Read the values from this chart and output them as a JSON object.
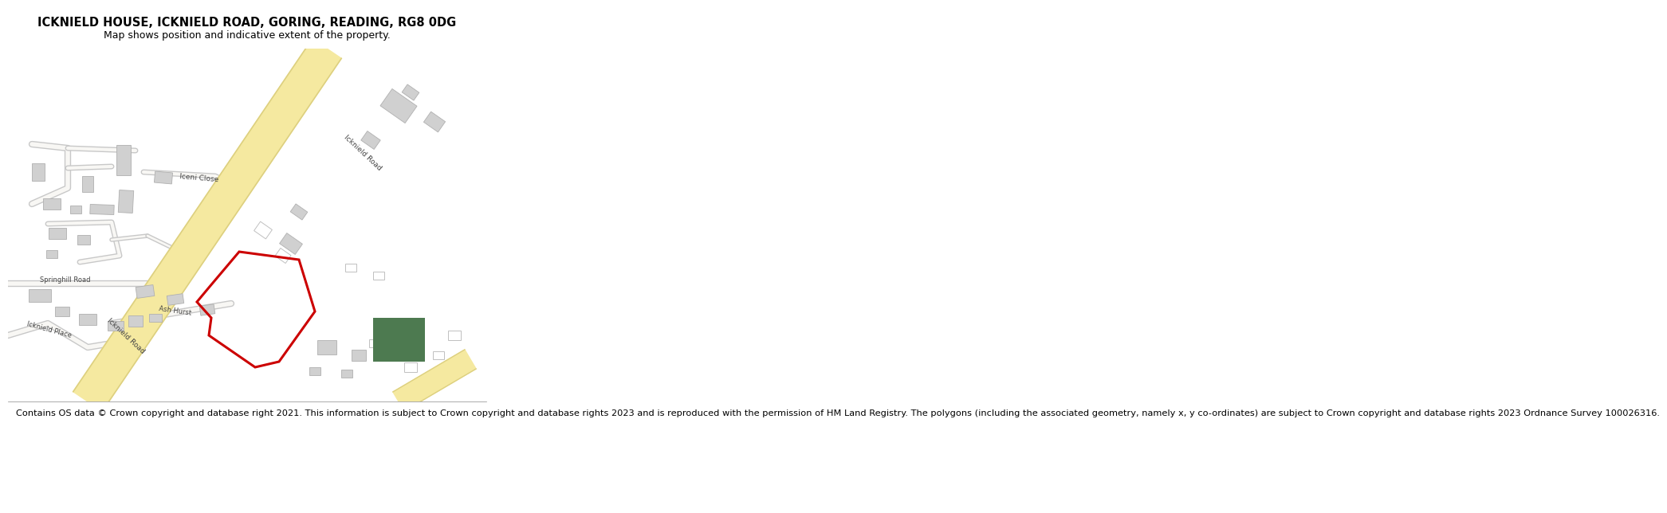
{
  "title": "ICKNIELD HOUSE, ICKNIELD ROAD, GORING, READING, RG8 0DG",
  "subtitle": "Map shows position and indicative extent of the property.",
  "footer": "Contains OS data © Crown copyright and database right 2021. This information is subject to Crown copyright and database rights 2023 and is reproduced with the permission of HM Land Registry. The polygons (including the associated geometry, namely x, y co-ordinates) are subject to Crown copyright and database rights 2023 Ordnance Survey 100026316.",
  "bg_color": "#ffffff",
  "map_bg": "#f8f7f4",
  "road_yellow": "#f5e9a0",
  "road_yellow_border": "#ddd080",
  "road_grey_outer": "#c8c8c8",
  "road_grey_inner": "#f8f7f4",
  "building_fill": "#d0d0d0",
  "building_edge": "#b0b0b0",
  "green_color": "#4d7a50",
  "red_color": "#cc0000",
  "title_fontsize": 10.5,
  "subtitle_fontsize": 9,
  "footer_fontsize": 8.2,
  "label_fontsize": 6.5
}
